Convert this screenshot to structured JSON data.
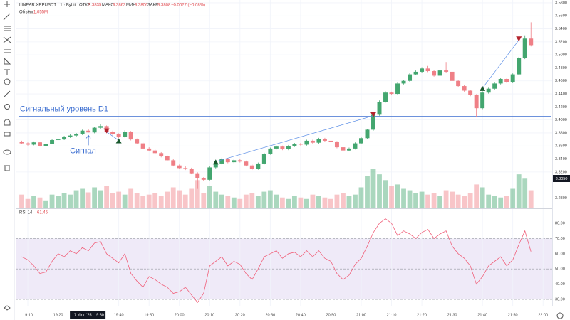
{
  "header": {
    "symbol": "LINEAR:XRPUSDT · 1 · Bybit",
    "open_label": "ОТКР",
    "high_label": "МАКС",
    "low_label": "МИН",
    "close_label": "ЗАКР",
    "change": "−0.0027 (−0.08%)",
    "volume_label": "Объём",
    "volume_value": "1.055M",
    "rsi_label": "RSI 14"
  },
  "chart_data": {
    "type": "candlestick",
    "x": [
      "19:08",
      "19:10",
      "19:12",
      "19:14",
      "19:16",
      "19:18",
      "19:20",
      "19:22",
      "19:24",
      "19:26",
      "19:28",
      "19:30",
      "19:32",
      "19:34",
      "19:36",
      "19:38",
      "19:40",
      "19:42",
      "19:44",
      "19:46",
      "19:48",
      "19:50",
      "19:52",
      "19:54",
      "19:56",
      "19:58",
      "20:00",
      "20:02",
      "20:04",
      "20:06",
      "20:08",
      "20:10",
      "20:12",
      "20:14",
      "20:16",
      "20:18",
      "20:20",
      "20:22",
      "20:24",
      "20:26",
      "20:28",
      "20:30",
      "20:32",
      "20:34",
      "20:36",
      "20:38",
      "20:40",
      "20:42",
      "20:44",
      "20:46",
      "20:48",
      "20:50",
      "20:52",
      "20:54",
      "20:56",
      "20:58",
      "21:00",
      "21:02",
      "21:04",
      "21:06",
      "21:08",
      "21:10",
      "21:12",
      "21:14",
      "21:16",
      "21:18",
      "21:20",
      "21:22",
      "21:24",
      "21:26",
      "21:28",
      "21:30",
      "21:32",
      "21:34",
      "21:36",
      "21:38",
      "21:40",
      "21:42",
      "21:44",
      "21:46",
      "21:48",
      "21:50",
      "21:52",
      "21:54",
      "21:56"
    ],
    "candles": [
      [
        3.366,
        3.368,
        3.3625,
        3.364
      ],
      [
        3.364,
        3.3655,
        3.3605,
        3.362
      ],
      [
        3.362,
        3.367,
        3.361,
        3.3655
      ],
      [
        3.3655,
        3.3665,
        3.359,
        3.36
      ],
      [
        3.36,
        3.365,
        3.359,
        3.3635
      ],
      [
        3.3635,
        3.3705,
        3.3625,
        3.369
      ],
      [
        3.369,
        3.372,
        3.3675,
        3.37
      ],
      [
        3.37,
        3.3755,
        3.369,
        3.374
      ],
      [
        3.374,
        3.378,
        3.3725,
        3.376
      ],
      [
        3.376,
        3.38,
        3.3745,
        3.3785
      ],
      [
        3.3785,
        3.385,
        3.377,
        3.3835
      ],
      [
        3.3835,
        3.3863,
        3.3806,
        3.3808
      ],
      [
        3.3808,
        3.3895,
        3.3795,
        3.388
      ],
      [
        3.388,
        3.393,
        3.3865,
        3.3905
      ],
      [
        3.3905,
        3.3915,
        3.3805,
        3.382
      ],
      [
        3.382,
        3.3835,
        3.376,
        3.378
      ],
      [
        3.378,
        3.3795,
        3.372,
        3.374
      ],
      [
        3.374,
        3.384,
        3.373,
        3.382
      ],
      [
        3.382,
        3.383,
        3.3685,
        3.37
      ],
      [
        3.37,
        3.3715,
        3.3625,
        3.364
      ],
      [
        3.364,
        3.3655,
        3.3545,
        3.356
      ],
      [
        3.356,
        3.358,
        3.3515,
        3.353
      ],
      [
        3.353,
        3.3545,
        3.347,
        3.349
      ],
      [
        3.349,
        3.3505,
        3.3425,
        3.344
      ],
      [
        3.344,
        3.3455,
        3.3365,
        3.338
      ],
      [
        3.338,
        3.3395,
        3.3285,
        3.33
      ],
      [
        3.33,
        3.3315,
        3.3245,
        3.326
      ],
      [
        3.326,
        3.3285,
        3.323,
        3.325
      ],
      [
        3.325,
        3.3265,
        3.3165,
        3.318
      ],
      [
        3.318,
        3.3195,
        3.294,
        3.31
      ],
      [
        3.31,
        3.312,
        3.306,
        3.308
      ],
      [
        3.308,
        3.329,
        3.307,
        3.327
      ],
      [
        3.327,
        3.335,
        3.3255,
        3.333
      ],
      [
        3.333,
        3.342,
        3.3315,
        3.34
      ],
      [
        3.34,
        3.3415,
        3.3335,
        3.335
      ],
      [
        3.335,
        3.3395,
        3.3335,
        3.338
      ],
      [
        3.338,
        3.3395,
        3.3345,
        3.336
      ],
      [
        3.336,
        3.3375,
        3.3285,
        3.33
      ],
      [
        3.33,
        3.3315,
        3.323,
        3.325
      ],
      [
        3.325,
        3.3345,
        3.3235,
        3.333
      ],
      [
        3.333,
        3.3495,
        3.3315,
        3.348
      ],
      [
        3.348,
        3.3575,
        3.3465,
        3.356
      ],
      [
        3.356,
        3.3605,
        3.3545,
        3.359
      ],
      [
        3.359,
        3.3605,
        3.3535,
        3.355
      ],
      [
        3.355,
        3.3615,
        3.3535,
        3.36
      ],
      [
        3.36,
        3.3645,
        3.3585,
        3.363
      ],
      [
        3.363,
        3.3645,
        3.3605,
        3.362
      ],
      [
        3.362,
        3.3695,
        3.3605,
        3.368
      ],
      [
        3.368,
        3.3695,
        3.3635,
        3.365
      ],
      [
        3.365,
        3.3725,
        3.3635,
        3.371
      ],
      [
        3.371,
        3.3725,
        3.3665,
        3.368
      ],
      [
        3.368,
        3.3695,
        3.3645,
        3.366
      ],
      [
        3.366,
        3.3675,
        3.3565,
        3.358
      ],
      [
        3.358,
        3.3595,
        3.3515,
        3.353
      ],
      [
        3.353,
        3.3575,
        3.3515,
        3.356
      ],
      [
        3.356,
        3.3655,
        3.3545,
        3.364
      ],
      [
        3.364,
        3.3735,
        3.3625,
        3.372
      ],
      [
        3.372,
        3.3865,
        3.3705,
        3.385
      ],
      [
        3.385,
        3.41,
        3.3835,
        3.408
      ],
      [
        3.408,
        3.43,
        3.4065,
        3.428
      ],
      [
        3.428,
        3.444,
        3.4265,
        3.442
      ],
      [
        3.442,
        3.4435,
        3.438,
        3.44
      ],
      [
        3.44,
        3.458,
        3.4385,
        3.456
      ],
      [
        3.456,
        3.4615,
        3.4545,
        3.46
      ],
      [
        3.46,
        3.472,
        3.4585,
        3.47
      ],
      [
        3.47,
        3.476,
        3.4685,
        3.474
      ],
      [
        3.474,
        3.481,
        3.4725,
        3.479
      ],
      [
        3.479,
        3.483,
        3.4735,
        3.475
      ],
      [
        3.475,
        3.4765,
        3.4665,
        3.468
      ],
      [
        3.468,
        3.4775,
        3.4665,
        3.476
      ],
      [
        3.476,
        3.489,
        3.472,
        3.474
      ],
      [
        3.474,
        3.4755,
        3.4585,
        3.46
      ],
      [
        3.46,
        3.4615,
        3.4505,
        3.452
      ],
      [
        3.452,
        3.4535,
        3.4435,
        3.445
      ],
      [
        3.445,
        3.4465,
        3.4365,
        3.438
      ],
      [
        3.438,
        3.4395,
        3.404,
        3.418
      ],
      [
        3.418,
        3.444,
        3.4165,
        3.442
      ],
      [
        3.442,
        3.4495,
        3.4405,
        3.448
      ],
      [
        3.448,
        3.4575,
        3.4465,
        3.456
      ],
      [
        3.456,
        3.4645,
        3.4545,
        3.463
      ],
      [
        3.463,
        3.4645,
        3.4565,
        3.458
      ],
      [
        3.458,
        3.4715,
        3.4565,
        3.47
      ],
      [
        3.47,
        3.497,
        3.4685,
        3.495
      ],
      [
        3.495,
        3.53,
        3.4935,
        3.525
      ],
      [
        3.525,
        3.55,
        3.513,
        3.515
      ]
    ],
    "volume": [
      0.9,
      0.6,
      0.8,
      0.7,
      0.5,
      0.9,
      0.8,
      1.0,
      0.9,
      1.2,
      1.3,
      1.055,
      1.4,
      1.2,
      1.5,
      1.0,
      1.1,
      0.9,
      1.3,
      1.0,
      0.8,
      0.9,
      1.0,
      0.8,
      1.1,
      1.4,
      1.2,
      0.9,
      1.3,
      1.9,
      1.0,
      1.5,
      1.1,
      0.9,
      0.8,
      0.7,
      0.6,
      0.9,
      1.0,
      0.8,
      1.1,
      1.2,
      0.9,
      0.7,
      0.6,
      0.8,
      0.7,
      0.6,
      0.9,
      0.8,
      0.7,
      0.6,
      0.9,
      1.0,
      0.8,
      0.9,
      1.4,
      2.2,
      2.7,
      2.3,
      1.9,
      1.5,
      1.6,
      1.3,
      1.2,
      1.0,
      1.1,
      0.9,
      1.0,
      0.8,
      1.2,
      1.1,
      0.9,
      0.8,
      1.0,
      1.6,
      1.4,
      0.9,
      0.8,
      0.7,
      0.8,
      1.3,
      2.3,
      2.0,
      1.2
    ],
    "rsi": [
      58,
      56,
      52,
      47,
      48,
      55,
      60,
      58,
      62,
      60,
      64,
      62,
      67,
      68,
      60,
      57,
      54,
      60,
      47,
      42,
      38,
      45,
      43,
      40,
      38,
      34,
      35,
      38,
      33,
      28,
      34,
      52,
      55,
      58,
      52,
      55,
      53,
      47,
      43,
      50,
      58,
      60,
      62,
      57,
      60,
      61,
      58,
      62,
      58,
      62,
      57,
      55,
      47,
      43,
      46,
      53,
      57,
      65,
      74,
      80,
      83,
      80,
      72,
      75,
      73,
      70,
      74,
      76,
      70,
      73,
      75,
      65,
      60,
      57,
      52,
      40,
      45,
      52,
      55,
      58,
      52,
      56,
      66,
      75,
      61.45
    ],
    "xlim": [
      "19:06",
      "22:03"
    ],
    "xticks": [
      "19:10",
      "19:20",
      "19:40",
      "19:50",
      "20:00",
      "20:10",
      "20:20",
      "20:30",
      "20:40",
      "20:50",
      "21:00",
      "21:10",
      "21:20",
      "21:30",
      "21:40",
      "21:50",
      "22:00"
    ],
    "ylim": [
      3.2652,
      3.5843
    ],
    "yticks": [
      {
        "value": 3.58,
        "label": "3.5800"
      },
      {
        "value": 3.56,
        "label": "3.5600"
      },
      {
        "value": 3.54,
        "label": "3.5400"
      },
      {
        "value": 3.52,
        "label": "3.5200"
      },
      {
        "value": 3.5,
        "label": "3.5000"
      },
      {
        "value": 3.48,
        "label": "3.4800"
      },
      {
        "value": 3.46,
        "label": "3.4600"
      },
      {
        "value": 3.44,
        "label": "3.4400"
      },
      {
        "value": 3.42,
        "label": "3.4200"
      },
      {
        "value": 3.4,
        "label": "3.4000"
      },
      {
        "value": 3.38,
        "label": "3.3800"
      },
      {
        "value": 3.36,
        "label": "3.3600"
      },
      {
        "value": 3.34,
        "label": "3.3400"
      },
      {
        "value": 3.32,
        "label": "3.3200"
      },
      {
        "value": 3.28,
        "label": "3.2800"
      }
    ],
    "rsi_ylim": [
      25.8,
      88.9
    ],
    "rsi_yticks": [
      {
        "value": 80,
        "label": "80.00"
      },
      {
        "value": 70,
        "label": "70.00"
      },
      {
        "value": 60,
        "label": "60.00"
      },
      {
        "value": 50,
        "label": "50.00"
      },
      {
        "value": 40,
        "label": "40.00"
      },
      {
        "value": 30,
        "label": "30.00"
      }
    ],
    "rsi_band": [
      30,
      70
    ],
    "rsi_mid": 50,
    "up_color": "#43a66f",
    "down_color": "#ef7f86",
    "rsi_color": "#f0607a",
    "band_color": "#efeaf8",
    "level": {
      "value": 3.4054,
      "label": "Сигнальный уровень D1",
      "color": "#3d6fd1"
    },
    "annotation": {
      "label": "Сигнал",
      "x": "19:30",
      "color": "#3d6fd1"
    },
    "signals": [
      {
        "x": "19:36",
        "price": 3.3815,
        "side": "sell"
      },
      {
        "x": "19:40",
        "price": 3.3685,
        "side": "buy"
      },
      {
        "x": "20:12",
        "price": 3.3359,
        "side": "buy"
      },
      {
        "x": "21:04",
        "price": 3.4065,
        "side": "sell"
      },
      {
        "x": "21:40",
        "price": 3.4489,
        "side": "buy"
      },
      {
        "x": "21:52",
        "price": 3.5228,
        "side": "sell"
      }
    ],
    "cursor": {
      "date": "17 Июл '25",
      "price_label": "3.3050"
    }
  }
}
